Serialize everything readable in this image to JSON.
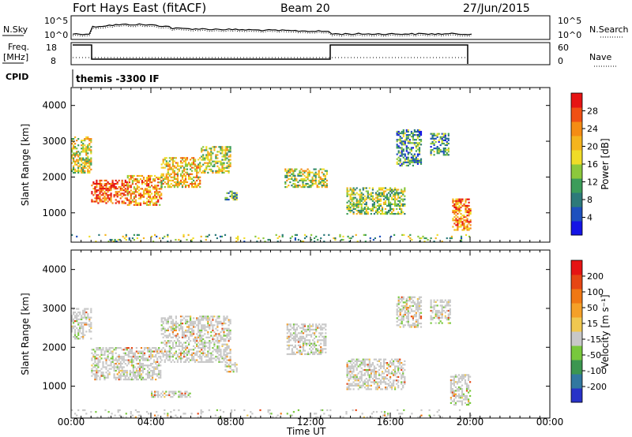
{
  "header": {
    "station": "Fort Hays East (fitACF)",
    "beam": "Beam 20",
    "date": "27/Jun/2015"
  },
  "panels": {
    "nsky": {
      "label": "N.Sky",
      "ticks": [
        "10^5",
        "10^0"
      ],
      "right_label": "N.Search",
      "right_ticks": [
        "10^5",
        "10^0"
      ]
    },
    "freq": {
      "label1": "Freq.",
      "label2": "[MHz]",
      "ticks": [
        "18",
        "8"
      ],
      "right_label": "Nave",
      "right_ticks": [
        "60",
        "0"
      ]
    },
    "cpid": {
      "label": "CPID",
      "value": "themis -3300 IF"
    }
  },
  "chart_data": [
    {
      "type": "heatmap",
      "title": "",
      "xlabel": "Time UT",
      "ylabel": "Slant Range [km]",
      "x_ticks": [
        "00:00",
        "04:00",
        "08:00",
        "12:00",
        "16:00",
        "20:00",
        "00:00"
      ],
      "x_hours": [
        0,
        4,
        8,
        12,
        16,
        20,
        24
      ],
      "xlim_hours": [
        0,
        24
      ],
      "ylim_km": [
        180,
        4500
      ],
      "y_ticks": [
        1000,
        2000,
        3000,
        4000
      ],
      "colorbar": {
        "label": "Power [dB]",
        "ticks": [
          "28",
          "24",
          "20",
          "16",
          "12",
          "8",
          "4"
        ],
        "colors": [
          "#1414e6",
          "#1e50be",
          "#2d7a7a",
          "#3c9c5a",
          "#8cc83c",
          "#f0dc28",
          "#f5b41e",
          "#f58c14",
          "#f05014",
          "#e61414"
        ]
      },
      "regions": [
        {
          "t0": 0.0,
          "t1": 1.0,
          "r0": 2100,
          "r1": 3100,
          "level": 0.55
        },
        {
          "t0": 1.0,
          "t1": 2.8,
          "r0": 1250,
          "r1": 1900,
          "level": 0.85
        },
        {
          "t0": 2.8,
          "t1": 4.5,
          "r0": 1200,
          "r1": 2050,
          "level": 0.7
        },
        {
          "t0": 4.5,
          "t1": 6.5,
          "r0": 1700,
          "r1": 2550,
          "level": 0.6
        },
        {
          "t0": 6.5,
          "t1": 8.0,
          "r0": 2100,
          "r1": 2850,
          "level": 0.5
        },
        {
          "t0": 7.7,
          "t1": 8.3,
          "r0": 1350,
          "r1": 1600,
          "level": 0.35
        },
        {
          "t0": 10.7,
          "t1": 12.8,
          "r0": 1700,
          "r1": 2200,
          "level": 0.5
        },
        {
          "t0": 13.8,
          "t1": 16.7,
          "r0": 950,
          "r1": 1700,
          "level": 0.45
        },
        {
          "t0": 16.3,
          "t1": 17.5,
          "r0": 2300,
          "r1": 3300,
          "level": 0.3
        },
        {
          "t0": 18.0,
          "t1": 18.9,
          "r0": 2600,
          "r1": 3200,
          "level": 0.3
        },
        {
          "t0": 19.1,
          "t1": 20.0,
          "r0": 500,
          "r1": 1400,
          "level": 0.75
        },
        {
          "t0": 0.0,
          "t1": 20.0,
          "r0": 180,
          "r1": 400,
          "level": 0.4
        }
      ]
    },
    {
      "type": "heatmap",
      "title": "",
      "xlabel": "Time UT",
      "ylabel": "Slant Range [km]",
      "x_ticks": [
        "00:00",
        "04:00",
        "08:00",
        "12:00",
        "16:00",
        "20:00",
        "00:00"
      ],
      "x_hours": [
        0,
        4,
        8,
        12,
        16,
        20,
        24
      ],
      "xlim_hours": [
        0,
        24
      ],
      "ylim_km": [
        180,
        4500
      ],
      "y_ticks": [
        1000,
        2000,
        3000,
        4000
      ],
      "colorbar": {
        "label": "Velocity [m s⁻¹]",
        "ticks": [
          "200",
          "100",
          "50",
          "15",
          "-15",
          "-50",
          "-100",
          "-200"
        ],
        "colors": [
          "#2832c8",
          "#3278a0",
          "#3c9650",
          "#78c83c",
          "#c8c8c8",
          "#f0c850",
          "#f5a028",
          "#f07814",
          "#e64614",
          "#e61414"
        ]
      },
      "regions": [
        {
          "t0": 0.0,
          "t1": 1.0,
          "r0": 2200,
          "r1": 3000,
          "level": 0.45
        },
        {
          "t0": 1.0,
          "t1": 4.5,
          "r0": 1150,
          "r1": 2000,
          "level": 0.45
        },
        {
          "t0": 4.5,
          "t1": 8.0,
          "r0": 1600,
          "r1": 2800,
          "level": 0.45
        },
        {
          "t0": 7.7,
          "t1": 8.3,
          "r0": 1350,
          "r1": 1600,
          "level": 0.35
        },
        {
          "t0": 4.0,
          "t1": 6.0,
          "r0": 700,
          "r1": 850,
          "level": 0.35
        },
        {
          "t0": 10.8,
          "t1": 12.8,
          "r0": 1800,
          "r1": 2600,
          "level": 0.45
        },
        {
          "t0": 13.8,
          "t1": 16.7,
          "r0": 900,
          "r1": 1700,
          "level": 0.45
        },
        {
          "t0": 16.3,
          "t1": 17.5,
          "r0": 2500,
          "r1": 3300,
          "level": 0.45
        },
        {
          "t0": 18.0,
          "t1": 19.0,
          "r0": 2600,
          "r1": 3200,
          "level": 0.45
        },
        {
          "t0": 19.0,
          "t1": 20.0,
          "r0": 500,
          "r1": 1300,
          "level": 0.45
        },
        {
          "t0": 0.0,
          "t1": 20.0,
          "r0": 180,
          "r1": 400,
          "level": 0.55
        }
      ]
    }
  ]
}
